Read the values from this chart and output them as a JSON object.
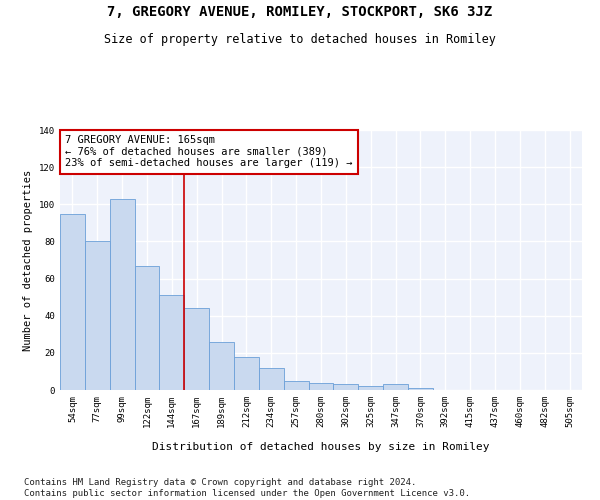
{
  "title": "7, GREGORY AVENUE, ROMILEY, STOCKPORT, SK6 3JZ",
  "subtitle": "Size of property relative to detached houses in Romiley",
  "xlabel": "Distribution of detached houses by size in Romiley",
  "ylabel": "Number of detached properties",
  "categories": [
    "54sqm",
    "77sqm",
    "99sqm",
    "122sqm",
    "144sqm",
    "167sqm",
    "189sqm",
    "212sqm",
    "234sqm",
    "257sqm",
    "280sqm",
    "302sqm",
    "325sqm",
    "347sqm",
    "370sqm",
    "392sqm",
    "415sqm",
    "437sqm",
    "460sqm",
    "482sqm",
    "505sqm"
  ],
  "values": [
    95,
    80,
    103,
    67,
    51,
    44,
    26,
    18,
    12,
    5,
    4,
    3,
    2,
    3,
    1,
    0,
    0,
    0,
    0,
    0,
    0
  ],
  "bar_color": "#c9d9ef",
  "bar_edge_color": "#6a9fd8",
  "vline_x_index": 5,
  "vline_color": "#cc0000",
  "annotation_text": "7 GREGORY AVENUE: 165sqm\n← 76% of detached houses are smaller (389)\n23% of semi-detached houses are larger (119) →",
  "annotation_box_color": "#cc0000",
  "ylim": [
    0,
    140
  ],
  "yticks": [
    0,
    20,
    40,
    60,
    80,
    100,
    120,
    140
  ],
  "footer_text": "Contains HM Land Registry data © Crown copyright and database right 2024.\nContains public sector information licensed under the Open Government Licence v3.0.",
  "bg_color": "#eef2fb",
  "grid_color": "#ffffff",
  "title_fontsize": 10,
  "subtitle_fontsize": 8.5,
  "annotation_fontsize": 7.5,
  "tick_fontsize": 6.5,
  "ylabel_fontsize": 7.5,
  "xlabel_fontsize": 8,
  "footer_fontsize": 6.5
}
